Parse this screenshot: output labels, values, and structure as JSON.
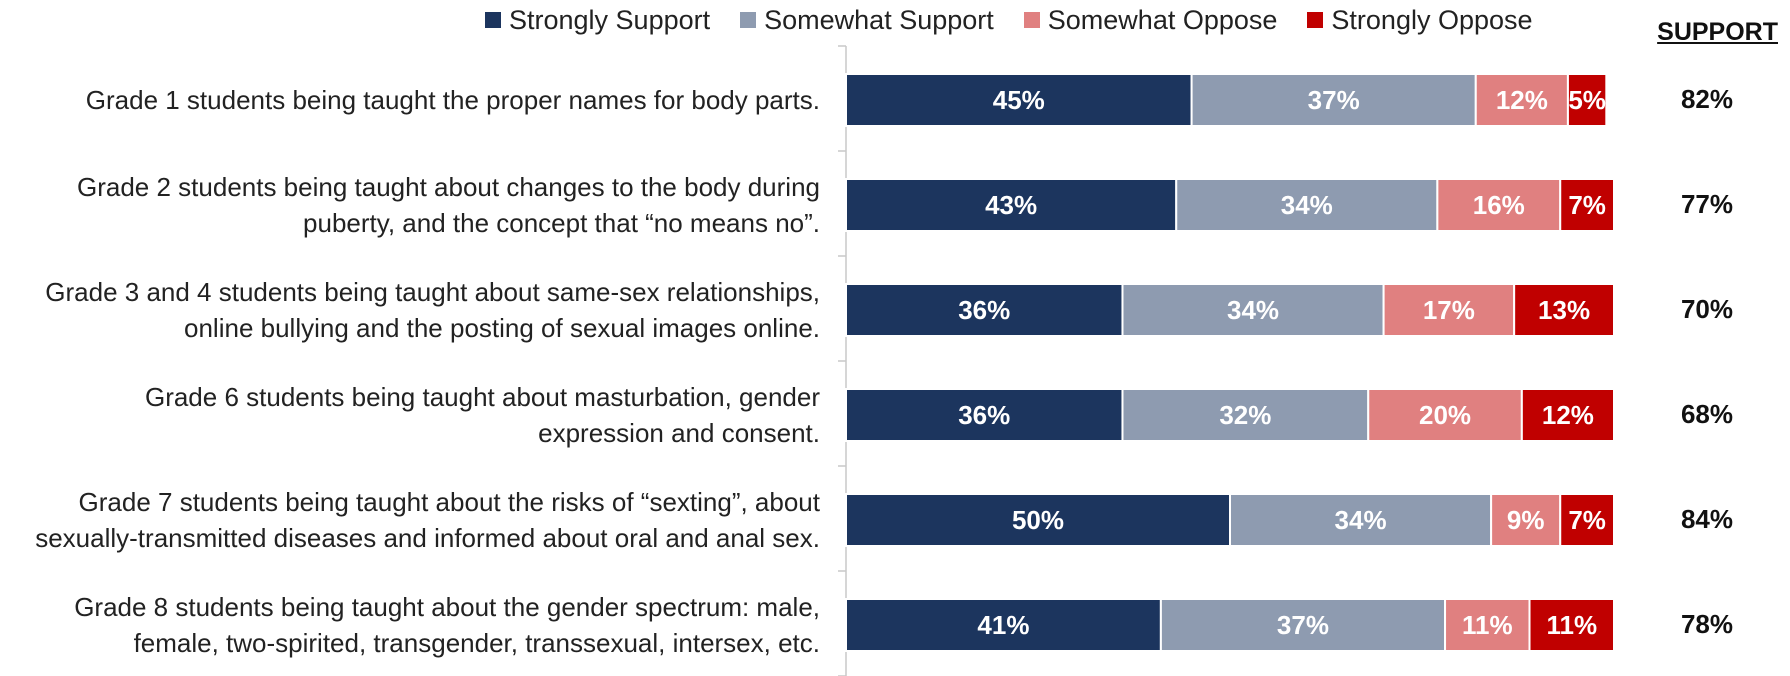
{
  "chart_data": {
    "type": "bar",
    "orientation": "horizontal",
    "stacked": true,
    "categories": [
      "Grade 1 students being taught the proper names for body parts.",
      "Grade 2 students being taught about changes to the body during puberty, and the concept that “no means no”.",
      "Grade 3 and 4 students being taught about same-sex relationships, online bullying and the posting of sexual images online.",
      "Grade 6 students being taught about masturbation, gender expression and consent.",
      "Grade 7 students being taught about the risks of “sexting”, about sexually-transmitted diseases and informed about oral and anal sex.",
      "Grade 8 students being taught about the gender spectrum: male, female, two-spirited, transgender, transsexual, intersex, etc."
    ],
    "category_lines": [
      [
        "Grade 1 students being taught the proper names for body parts."
      ],
      [
        "Grade 2 students being taught about changes to the body during",
        "puberty, and the concept that “no means no”."
      ],
      [
        "Grade 3 and 4 students being taught about same-sex relationships,",
        "online bullying and the posting of sexual images online."
      ],
      [
        "Grade 6 students being taught about masturbation, gender",
        "expression and consent."
      ],
      [
        "Grade 7 students being taught about the risks of “sexting”, about",
        "sexually-transmitted diseases and informed about oral and anal sex."
      ],
      [
        "Grade 8 students being taught about the gender spectrum: male,",
        "female, two-spirited, transgender, transsexual, intersex, etc."
      ]
    ],
    "series": [
      {
        "name": "Strongly Support",
        "color": "#1c355e",
        "values": [
          45,
          43,
          36,
          36,
          50,
          41
        ]
      },
      {
        "name": "Somewhat Support",
        "color": "#8e9bb0",
        "values": [
          37,
          34,
          34,
          32,
          34,
          37
        ]
      },
      {
        "name": "Somewhat Oppose",
        "color": "#e08080",
        "values": [
          12,
          16,
          17,
          20,
          9,
          11
        ]
      },
      {
        "name": "Strongly Oppose",
        "color": "#c00000",
        "values": [
          5,
          7,
          13,
          12,
          7,
          11
        ]
      }
    ],
    "value_suffix": "%",
    "support_header": "SUPPORT",
    "support_values": [
      "82%",
      "77%",
      "70%",
      "68%",
      "84%",
      "78%"
    ],
    "legend_position": "top",
    "grid": false
  }
}
